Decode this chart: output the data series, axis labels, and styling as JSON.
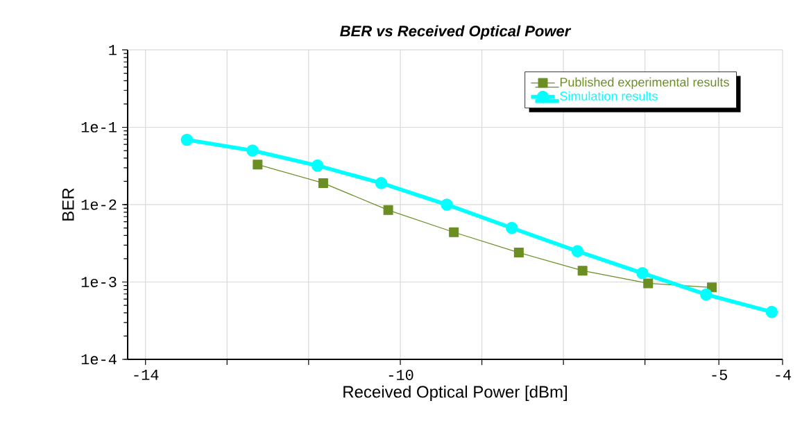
{
  "chart_data": {
    "type": "line",
    "title": "BER vs Received Optical Power",
    "xlabel": "Received Optical Power [dBm]",
    "ylabel": "BER",
    "xlim": [
      -14.28,
      -4
    ],
    "xticks": [
      -14,
      {
        "value": -12.72,
        "label": null
      },
      {
        "value": -11.44,
        "label": null
      },
      -10,
      {
        "value": -8.72,
        "label": null
      },
      {
        "value": -7.44,
        "label": null
      },
      {
        "value": -6.16,
        "label": null
      },
      -5,
      -4
    ],
    "ylim": [
      0.0001,
      1
    ],
    "yticks": [
      {
        "value": 0.0001,
        "label": "1e-4"
      },
      {
        "value": 0.001,
        "label": "1e-3"
      },
      {
        "value": 0.01,
        "label": "1e-2"
      },
      {
        "value": 0.1,
        "label": "1e-1"
      },
      1
    ],
    "log": "y",
    "grid": true,
    "legend": "top right",
    "series": [
      {
        "name": "Published experimental results",
        "color": "#6b8e23",
        "marker": "square",
        "x": [
          -12.24,
          -11.21,
          -10.19,
          -9.16,
          -8.14,
          -7.14,
          -6.11,
          -5.11
        ],
        "values": [
          0.033,
          0.019,
          0.0085,
          0.0044,
          0.0024,
          0.0014,
          0.00096,
          0.00085
        ]
      },
      {
        "name": "Simulation results",
        "color": "#00ffff",
        "marker": "circle",
        "x": [
          -13.35,
          -12.32,
          -11.3,
          -10.3,
          -9.27,
          -8.25,
          -7.22,
          -6.2,
          -5.2,
          -4.17
        ],
        "values": [
          0.069,
          0.05,
          0.032,
          0.019,
          0.01,
          0.005,
          0.0025,
          0.0013,
          0.00069,
          0.00041
        ]
      }
    ]
  }
}
